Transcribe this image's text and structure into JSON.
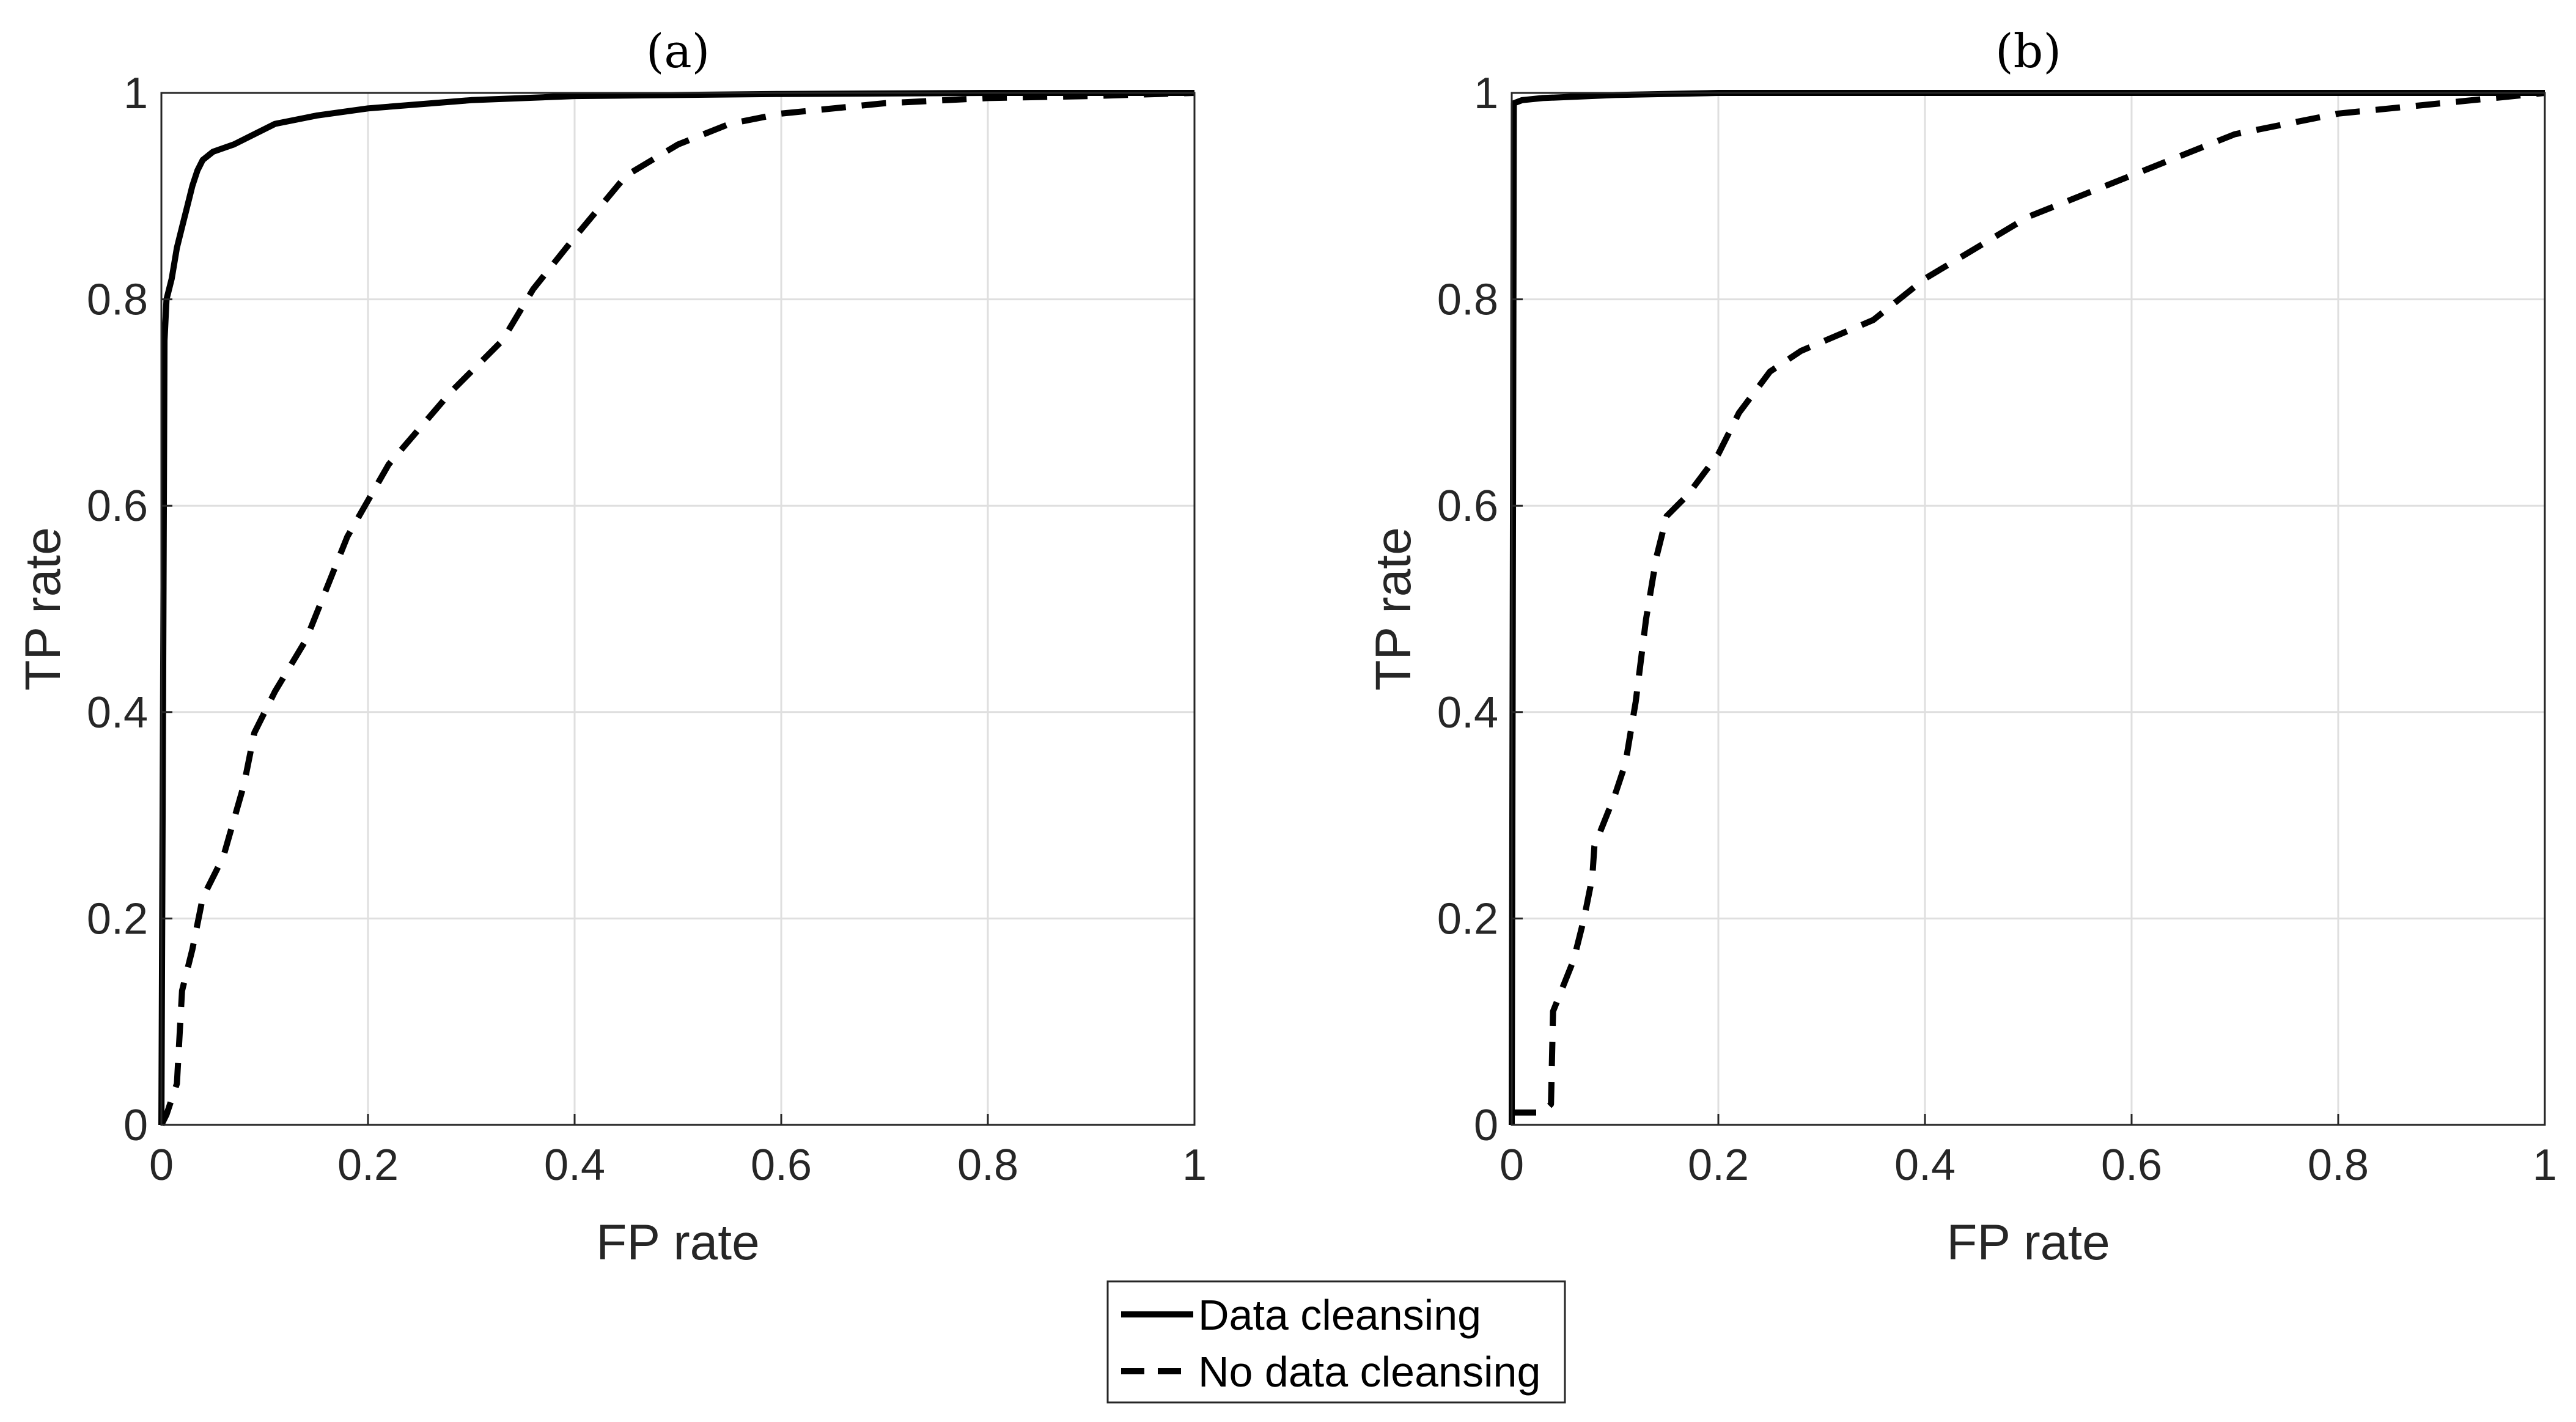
{
  "chart_data": [
    {
      "type": "line",
      "title": "(a)",
      "xlabel": "FP rate",
      "ylabel": "TP rate",
      "xlim": [
        0,
        1
      ],
      "ylim": [
        0,
        1
      ],
      "xticks": [
        "0",
        "0.2",
        "0.4",
        "0.6",
        "0.8",
        "1"
      ],
      "yticks": [
        "0",
        "0.2",
        "0.4",
        "0.6",
        "0.8",
        "1"
      ],
      "grid": true,
      "series": [
        {
          "name": "Data cleansing",
          "style": "solid",
          "points": [
            [
              0,
              0
            ],
            [
              0.003,
              0.76
            ],
            [
              0.005,
              0.8
            ],
            [
              0.01,
              0.82
            ],
            [
              0.015,
              0.85
            ],
            [
              0.02,
              0.87
            ],
            [
              0.025,
              0.89
            ],
            [
              0.03,
              0.91
            ],
            [
              0.035,
              0.925
            ],
            [
              0.04,
              0.935
            ],
            [
              0.05,
              0.943
            ],
            [
              0.07,
              0.95
            ],
            [
              0.09,
              0.96
            ],
            [
              0.11,
              0.97
            ],
            [
              0.15,
              0.978
            ],
            [
              0.2,
              0.985
            ],
            [
              0.3,
              0.993
            ],
            [
              0.4,
              0.997
            ],
            [
              0.6,
              0.999
            ],
            [
              0.8,
              1
            ],
            [
              1,
              1
            ]
          ]
        },
        {
          "name": "No data cleansing",
          "style": "dashed",
          "points": [
            [
              0,
              0
            ],
            [
              0.005,
              0.01
            ],
            [
              0.015,
              0.04
            ],
            [
              0.02,
              0.13
            ],
            [
              0.03,
              0.17
            ],
            [
              0.04,
              0.22
            ],
            [
              0.06,
              0.26
            ],
            [
              0.08,
              0.33
            ],
            [
              0.09,
              0.38
            ],
            [
              0.11,
              0.42
            ],
            [
              0.14,
              0.47
            ],
            [
              0.18,
              0.57
            ],
            [
              0.22,
              0.64
            ],
            [
              0.28,
              0.71
            ],
            [
              0.33,
              0.76
            ],
            [
              0.36,
              0.81
            ],
            [
              0.4,
              0.86
            ],
            [
              0.45,
              0.92
            ],
            [
              0.5,
              0.95
            ],
            [
              0.55,
              0.97
            ],
            [
              0.6,
              0.98
            ],
            [
              0.7,
              0.99
            ],
            [
              0.8,
              0.995
            ],
            [
              0.9,
              0.997
            ],
            [
              1,
              1
            ]
          ]
        }
      ],
      "legend": "bottom-center"
    },
    {
      "type": "line",
      "title": "(b)",
      "xlabel": "FP rate",
      "ylabel": "TP rate",
      "xlim": [
        0,
        1
      ],
      "ylim": [
        0,
        1
      ],
      "xticks": [
        "0",
        "0.2",
        "0.4",
        "0.6",
        "0.8",
        "1"
      ],
      "yticks": [
        "0",
        "0.2",
        "0.4",
        "0.6",
        "0.8",
        "1"
      ],
      "grid": true,
      "series": [
        {
          "name": "Data cleansing",
          "style": "solid",
          "points": [
            [
              0,
              0
            ],
            [
              0.002,
              0.99
            ],
            [
              0.01,
              0.993
            ],
            [
              0.03,
              0.995
            ],
            [
              0.1,
              0.998
            ],
            [
              0.2,
              1
            ],
            [
              1,
              1
            ]
          ]
        },
        {
          "name": "No data cleansing",
          "style": "dashed",
          "points": [
            [
              0,
              0.012
            ],
            [
              0.03,
              0.012
            ],
            [
              0.038,
              0.02
            ],
            [
              0.04,
              0.11
            ],
            [
              0.06,
              0.16
            ],
            [
              0.07,
              0.2
            ],
            [
              0.078,
              0.24
            ],
            [
              0.08,
              0.27
            ],
            [
              0.1,
              0.32
            ],
            [
              0.11,
              0.35
            ],
            [
              0.12,
              0.41
            ],
            [
              0.13,
              0.49
            ],
            [
              0.14,
              0.55
            ],
            [
              0.15,
              0.59
            ],
            [
              0.17,
              0.61
            ],
            [
              0.2,
              0.65
            ],
            [
              0.22,
              0.69
            ],
            [
              0.25,
              0.73
            ],
            [
              0.28,
              0.75
            ],
            [
              0.35,
              0.78
            ],
            [
              0.4,
              0.82
            ],
            [
              0.5,
              0.88
            ],
            [
              0.6,
              0.92
            ],
            [
              0.7,
              0.96
            ],
            [
              0.8,
              0.98
            ],
            [
              0.9,
              0.99
            ],
            [
              1,
              1
            ]
          ]
        }
      ],
      "legend": "bottom-center"
    }
  ],
  "legend_items": [
    {
      "label": "Data cleansing",
      "style": "solid"
    },
    {
      "label": "No data cleansing",
      "style": "dashed"
    }
  ]
}
